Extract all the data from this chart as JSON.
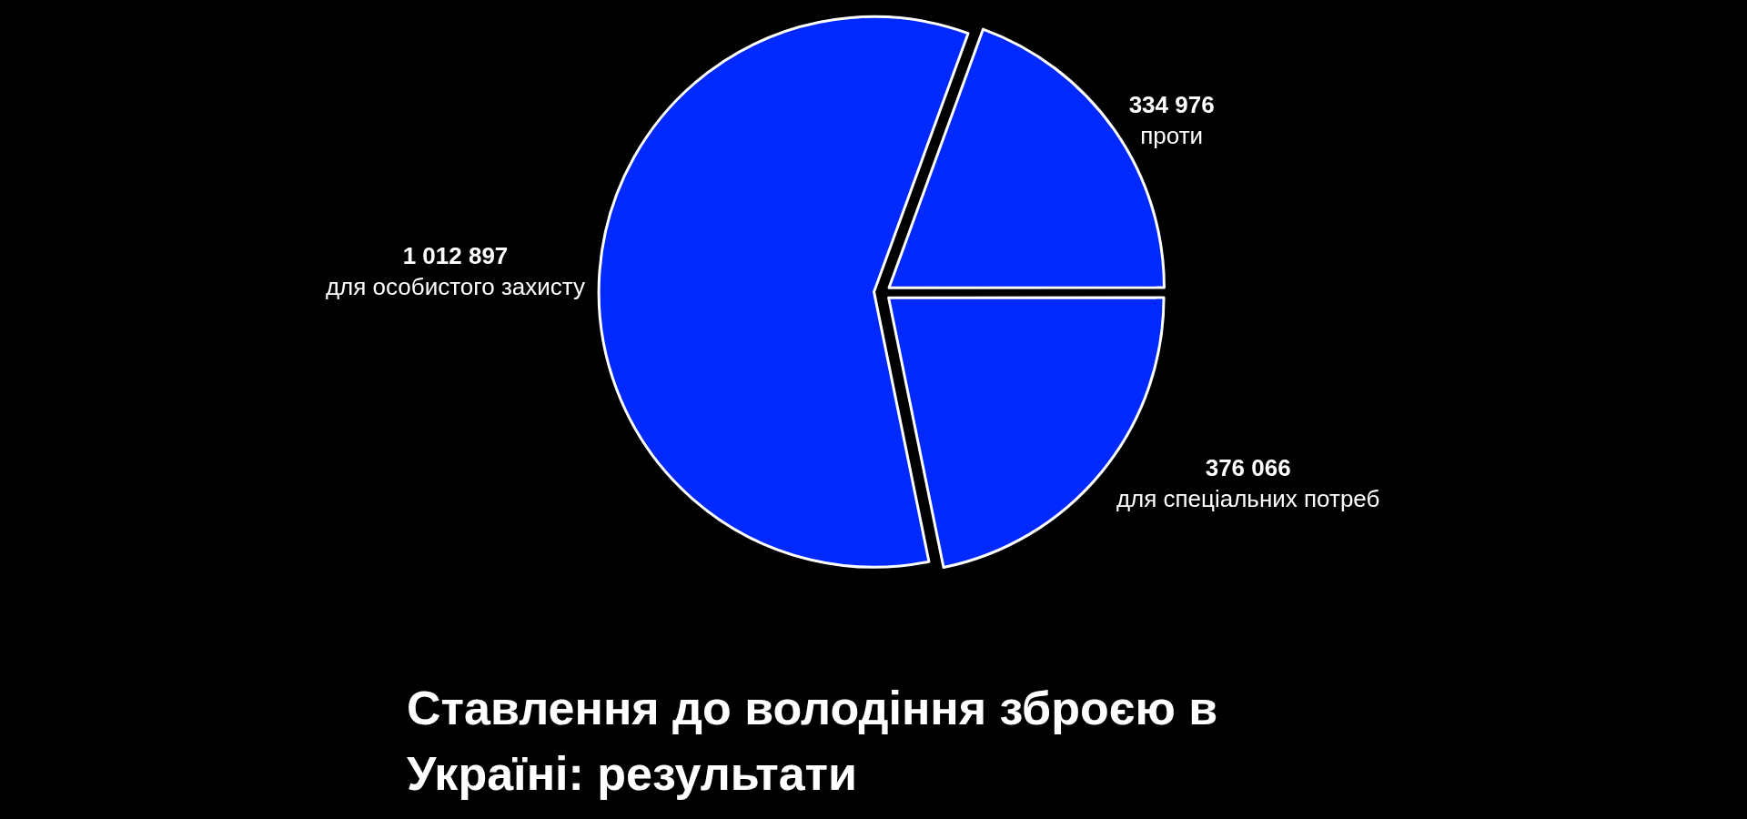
{
  "chart_data": {
    "type": "pie",
    "title": "Ставлення до володіння зброєю в Україні: результати",
    "categories": [
      "проти",
      "для спеціальних потреб",
      "для особистого захисту"
    ],
    "values": [
      334976,
      376066,
      1012897
    ],
    "value_labels": [
      "334 976",
      "376 066",
      "1 012 897"
    ],
    "colors": [
      "#0029ff",
      "#0029ff",
      "#0029ff"
    ],
    "legend": false
  }
}
